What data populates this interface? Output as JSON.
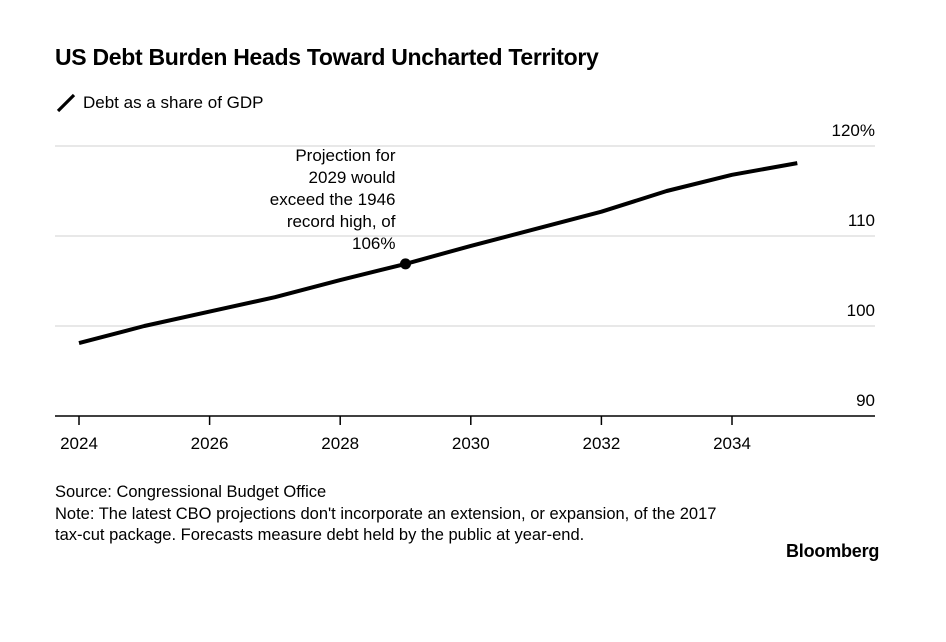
{
  "title": "US Debt Burden Heads Toward Uncharted Territory",
  "legend_label": "Debt as a share of GDP",
  "source": "Source: Congressional Budget Office",
  "note": "Note: The latest CBO projections don't incorporate an extension, or expansion, of the 2017 tax-cut package. Forecasts measure debt held by the public at year-end.",
  "brand": "Bloomberg",
  "colors": {
    "line": "#000000",
    "grid": "#e0e0e0",
    "axis": "#000000",
    "background": "#ffffff"
  },
  "chart_data": {
    "type": "line",
    "title": "US Debt Burden Heads Toward Uncharted Territory",
    "xlabel": "",
    "ylabel": "",
    "xlim": [
      2024,
      2036
    ],
    "ylim": [
      90,
      120
    ],
    "y_ticks": [
      90,
      100,
      110,
      120
    ],
    "y_tick_labels": [
      "90",
      "100",
      "110",
      "120%"
    ],
    "y_axis_side": "right",
    "x_ticks": [
      2024,
      2026,
      2028,
      2030,
      2032,
      2034
    ],
    "x_tick_labels": [
      "2024",
      "2026",
      "2028",
      "2030",
      "2032",
      "2034"
    ],
    "grid": true,
    "legend_position": "top-left",
    "series": [
      {
        "name": "Debt as a share of GDP",
        "x": [
          2024,
          2025,
          2026,
          2027,
          2028,
          2029,
          2030,
          2031,
          2032,
          2033,
          2034,
          2035
        ],
        "y": [
          98.1,
          100.0,
          101.6,
          103.2,
          105.1,
          106.9,
          108.9,
          110.8,
          112.7,
          115.0,
          116.8,
          118.1
        ]
      }
    ],
    "annotations": [
      {
        "x": 2029,
        "y": 106.9,
        "lines": [
          "Projection for",
          "2029 would",
          "exceed the 1946",
          "record high, of",
          "106%"
        ]
      }
    ]
  }
}
